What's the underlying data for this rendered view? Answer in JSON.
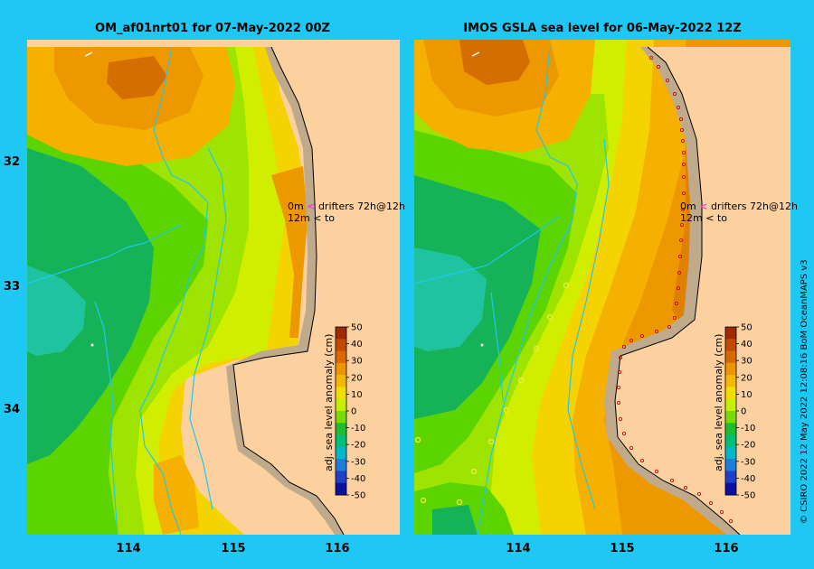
{
  "left_panel": {
    "title": "OM_af01nrt01 for 07-May-2022 00Z",
    "drifter_legend": {
      "row1_depth": "0m",
      "row1_symbol": "<",
      "row1_text": "drifters 72h@12h",
      "row2_depth": "12m",
      "row2_symbol": "<",
      "row2_text": "to"
    }
  },
  "right_panel": {
    "title": "IMOS GSLA sea level  for 06-May-2022 12Z",
    "drifter_legend": {
      "row1_depth": "0m",
      "row1_symbol": "<",
      "row1_text": "drifters 72h@12h",
      "row2_depth": "12m",
      "row2_symbol": "<",
      "row2_text": "to"
    }
  },
  "lat_labels": [
    "32",
    "33",
    "34"
  ],
  "lon_labels": [
    "114",
    "115",
    "116"
  ],
  "colorbar": {
    "title": "adj. sea level anomaly (cm)",
    "ticks": [
      "50",
      "40",
      "30",
      "20",
      "10",
      "0",
      "-10",
      "-20",
      "-30",
      "-40",
      "-50"
    ],
    "colors": [
      "#a02a00",
      "#c04a00",
      "#d86a00",
      "#ec9500",
      "#f3b800",
      "#f1dd00",
      "#c6ee00",
      "#78dc00",
      "#20bb30",
      "#00c07a",
      "#00b8c8",
      "#1f7cd8",
      "#1f3fc8",
      "#0a10a0"
    ]
  },
  "field_colors": {
    "ocean_deep_neg": "#20c3a0",
    "neg10": "#16b257",
    "zero": "#5bd400",
    "pos5": "#9ee400",
    "pos10": "#d2ee00",
    "pos20": "#f5d300",
    "pos25": "#f5b000",
    "pos30": "#ee9800",
    "pos40": "#d56e00",
    "land": "#fdd0a0",
    "coast_band": "#c0aa8c",
    "bathy": "#1ec8f2"
  },
  "credit": "© CSIRO 2022   12 May 2022 12:08:16 BoM OceanMAPS v3"
}
